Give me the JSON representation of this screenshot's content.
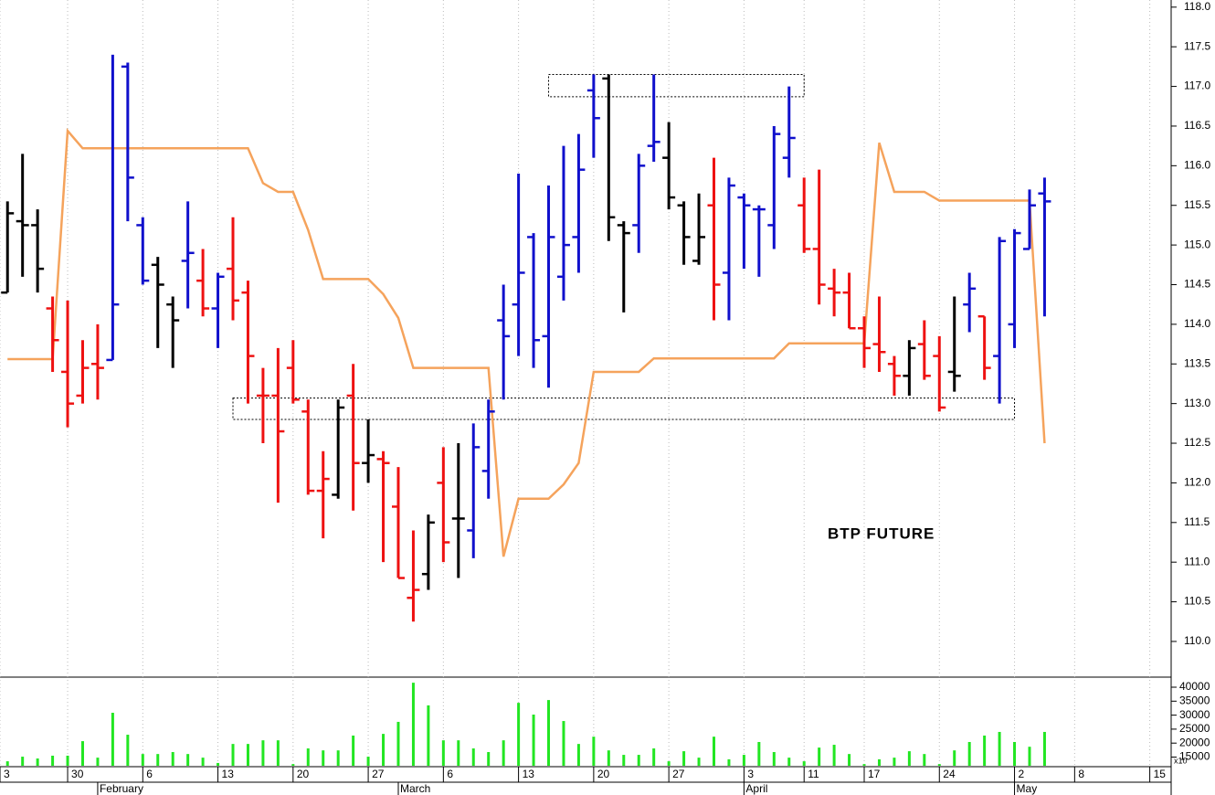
{
  "chart_data": [
    {
      "type": "ohlc",
      "annotation": "BTP FUTURE",
      "open": [
        114.4,
        115.3,
        115.25,
        114.2,
        113.4,
        113.1,
        113.5,
        113.55,
        117.25,
        115.25,
        114.75,
        114.25,
        114.8,
        114.55,
        114.2,
        114.7,
        114.4,
        113.1,
        113.1,
        113.45,
        112.9,
        111.9,
        111.85,
        113.1,
        112.25,
        112.3,
        111.7,
        110.55,
        110.85,
        112.0,
        111.55,
        111.4,
        112.15,
        114.05,
        114.25,
        115.1,
        113.85,
        114.6,
        115.1,
        116.95,
        117.1,
        115.25,
        115.25,
        116.25,
        116.1,
        115.5,
        114.8,
        115.5,
        114.65,
        115.6,
        115.45,
        115.25,
        116.1,
        115.5,
        114.95,
        114.45,
        114.4,
        113.95,
        113.75,
        113.5,
        113.35,
        113.75,
        113.6,
        113.4,
        114.25,
        114.1,
        113.6,
        114.0,
        114.95,
        115.65
      ],
      "high": [
        115.55,
        116.15,
        115.45,
        114.35,
        114.3,
        113.8,
        114.0,
        117.4,
        117.3,
        115.35,
        114.85,
        114.35,
        115.55,
        114.95,
        114.65,
        115.35,
        114.55,
        113.45,
        113.7,
        113.8,
        113.05,
        112.4,
        113.05,
        113.5,
        112.8,
        112.4,
        112.2,
        111.4,
        111.6,
        112.45,
        112.5,
        112.75,
        113.05,
        114.5,
        115.9,
        115.15,
        115.75,
        116.25,
        116.4,
        117.15,
        117.15,
        115.3,
        116.15,
        117.15,
        116.55,
        115.55,
        115.65,
        116.1,
        115.85,
        115.65,
        115.5,
        116.5,
        117.0,
        115.85,
        115.95,
        114.7,
        114.65,
        114.1,
        114.35,
        113.6,
        113.8,
        114.05,
        113.85,
        114.35,
        114.65,
        114.1,
        115.1,
        115.2,
        115.7,
        115.85
      ],
      "low": [
        114.4,
        114.6,
        114.4,
        113.4,
        112.7,
        113.0,
        113.05,
        113.55,
        115.3,
        114.5,
        113.7,
        113.45,
        114.2,
        114.1,
        113.7,
        114.05,
        113.0,
        112.5,
        111.75,
        113.0,
        111.85,
        111.3,
        111.8,
        111.65,
        112.0,
        111.0,
        110.8,
        110.25,
        110.65,
        111.0,
        110.8,
        111.05,
        111.8,
        113.05,
        113.6,
        113.45,
        113.2,
        114.3,
        114.65,
        116.1,
        115.05,
        114.15,
        114.9,
        116.05,
        115.45,
        114.75,
        114.75,
        114.05,
        114.05,
        114.7,
        114.6,
        114.95,
        115.85,
        114.9,
        114.25,
        114.1,
        113.95,
        113.45,
        113.4,
        113.1,
        113.1,
        113.3,
        112.9,
        113.15,
        113.9,
        113.3,
        113.0,
        113.7,
        114.95,
        114.1
      ],
      "close": [
        115.4,
        115.25,
        114.7,
        113.8,
        113.0,
        113.45,
        113.45,
        114.25,
        115.85,
        114.55,
        114.5,
        114.05,
        114.9,
        114.2,
        114.6,
        114.3,
        113.6,
        113.1,
        112.65,
        113.05,
        111.9,
        112.05,
        112.95,
        112.25,
        112.35,
        112.25,
        110.8,
        110.65,
        111.5,
        111.25,
        111.55,
        112.45,
        112.9,
        113.85,
        114.65,
        113.8,
        115.1,
        115.0,
        115.95,
        116.6,
        115.35,
        115.15,
        116.0,
        116.3,
        115.6,
        115.1,
        115.1,
        114.5,
        115.75,
        115.5,
        115.45,
        116.4,
        116.35,
        114.95,
        114.5,
        114.4,
        113.95,
        113.7,
        113.65,
        113.35,
        113.7,
        113.35,
        112.95,
        113.35,
        114.45,
        113.45,
        115.05,
        115.15,
        115.5,
        115.55
      ],
      "colors": [
        "#000000",
        "#000000",
        "#000000",
        "#ee1111",
        "#ee1111",
        "#ee1111",
        "#ee1111",
        "#1010cc",
        "#1010cc",
        "#1010cc",
        "#000000",
        "#000000",
        "#1010cc",
        "#ee1111",
        "#1010cc",
        "#ee1111",
        "#ee1111",
        "#ee1111",
        "#ee1111",
        "#ee1111",
        "#ee1111",
        "#ee1111",
        "#000000",
        "#ee1111",
        "#000000",
        "#ee1111",
        "#ee1111",
        "#ee1111",
        "#000000",
        "#ee1111",
        "#000000",
        "#1010cc",
        "#1010cc",
        "#1010cc",
        "#1010cc",
        "#1010cc",
        "#1010cc",
        "#1010cc",
        "#1010cc",
        "#1010cc",
        "#000000",
        "#000000",
        "#1010cc",
        "#1010cc",
        "#000000",
        "#000000",
        "#000000",
        "#ee1111",
        "#1010cc",
        "#1010cc",
        "#1010cc",
        "#1010cc",
        "#1010cc",
        "#ee1111",
        "#ee1111",
        "#ee1111",
        "#ee1111",
        "#ee1111",
        "#ee1111",
        "#ee1111",
        "#000000",
        "#ee1111",
        "#ee1111",
        "#000000",
        "#1010cc",
        "#ee1111",
        "#1010cc",
        "#1010cc",
        "#1010cc",
        "#1010cc"
      ],
      "line": {
        "color": "#f5a35c",
        "values": [
          113.56,
          113.56,
          113.56,
          113.56,
          116.44,
          116.22,
          116.22,
          116.22,
          116.22,
          116.22,
          116.22,
          116.22,
          116.22,
          116.22,
          116.22,
          116.22,
          116.22,
          115.78,
          115.67,
          115.67,
          115.19,
          114.57,
          114.57,
          114.57,
          114.57,
          114.38,
          114.08,
          113.45,
          113.45,
          113.45,
          113.45,
          113.45,
          113.45,
          111.07,
          111.8,
          111.8,
          111.8,
          111.98,
          112.25,
          113.4,
          113.4,
          113.4,
          113.4,
          113.57,
          113.57,
          113.57,
          113.57,
          113.57,
          113.57,
          113.57,
          113.57,
          113.57,
          113.76,
          113.76,
          113.76,
          113.76,
          113.76,
          113.76,
          116.29,
          115.67,
          115.67,
          115.67,
          115.56,
          115.56,
          115.56,
          115.56,
          115.56,
          115.56,
          115.56,
          112.5
        ]
      },
      "boxes": [
        {
          "x": [
            36,
            53
          ],
          "y": [
            116.87,
            117.15
          ]
        },
        {
          "x": [
            15,
            67
          ],
          "y": [
            112.8,
            113.07
          ]
        }
      ],
      "xlim": [
        -0.5,
        77.3
      ],
      "xticks": [
        {
          "value": -0.5,
          "label": "3"
        },
        {
          "value": 4,
          "label": "30"
        },
        {
          "value": 9,
          "label": "6"
        },
        {
          "value": 14,
          "label": "13"
        },
        {
          "value": 19,
          "label": "20"
        },
        {
          "value": 24,
          "label": "27"
        },
        {
          "value": 29,
          "label": "6"
        },
        {
          "value": 34,
          "label": "13"
        },
        {
          "value": 39,
          "label": "20"
        },
        {
          "value": 44,
          "label": "27"
        },
        {
          "value": 49,
          "label": "3"
        },
        {
          "value": 53,
          "label": "11"
        },
        {
          "value": 57,
          "label": "17"
        },
        {
          "value": 62,
          "label": "24"
        },
        {
          "value": 67,
          "label": "2"
        },
        {
          "value": 71,
          "label": "8"
        },
        {
          "value": 76,
          "label": "15"
        }
      ],
      "month_ticks": [
        {
          "value": 6,
          "label": "February"
        },
        {
          "value": 26,
          "label": "March"
        },
        {
          "value": 49,
          "label": "April"
        },
        {
          "value": 67,
          "label": "May"
        }
      ],
      "ylim": [
        109.55,
        118.09
      ],
      "yticks": [
        {
          "value": 110,
          "label": "110.0"
        },
        {
          "value": 110.5,
          "label": "110.5"
        },
        {
          "value": 111,
          "label": "111.0"
        },
        {
          "value": 111.5,
          "label": "111.5"
        },
        {
          "value": 112,
          "label": "112.0"
        },
        {
          "value": 112.5,
          "label": "112.5"
        },
        {
          "value": 113,
          "label": "113.0"
        },
        {
          "value": 113.5,
          "label": "113.5"
        },
        {
          "value": 114,
          "label": "114.0"
        },
        {
          "value": 114.5,
          "label": "114.5"
        },
        {
          "value": 115,
          "label": "115.0"
        },
        {
          "value": 115.5,
          "label": "115.5"
        },
        {
          "value": 116,
          "label": "116.0"
        },
        {
          "value": 116.5,
          "label": "116.5"
        },
        {
          "value": 117,
          "label": "117.0"
        },
        {
          "value": 117.5,
          "label": "117.5"
        },
        {
          "value": 118,
          "label": "118.0"
        }
      ],
      "grid": true
    },
    {
      "type": "bar",
      "color": "#22e622",
      "scale_label": "x10",
      "values": [
        13500,
        15150,
        14500,
        15500,
        15500,
        20700,
        14800,
        30850,
        23000,
        16100,
        16100,
        16800,
        16100,
        14800,
        12900,
        19700,
        19700,
        21000,
        21000,
        12500,
        18100,
        17400,
        17400,
        22700,
        15150,
        23300,
        27600,
        41600,
        33500,
        21000,
        21000,
        18100,
        16800,
        21000,
        34400,
        30200,
        35400,
        27900,
        19700,
        22300,
        17400,
        15800,
        15800,
        18100,
        13500,
        17100,
        14800,
        22300,
        14200,
        15800,
        20400,
        16800,
        14800,
        13500,
        18400,
        19400,
        16100,
        12500,
        14200,
        14800,
        17100,
        16100,
        12500,
        17400,
        20400,
        22700,
        24000,
        20400,
        18700,
        24000
      ],
      "ylim": [
        11900,
        43600
      ],
      "yticks": [
        15000,
        20000,
        25000,
        30000,
        35000,
        40000
      ]
    }
  ]
}
